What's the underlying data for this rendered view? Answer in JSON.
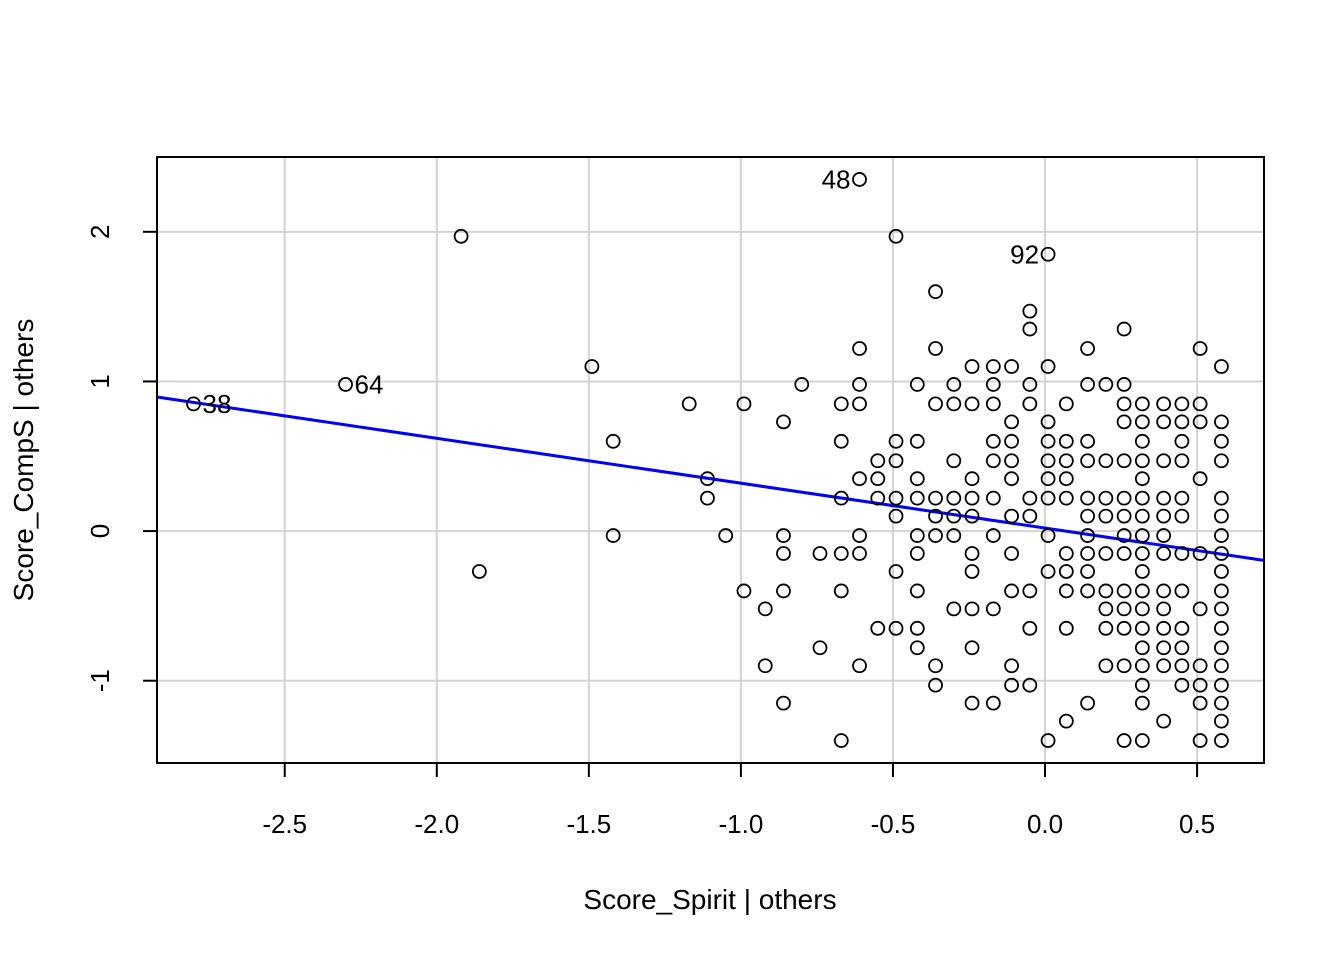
{
  "chart_data": {
    "type": "scatter",
    "xlabel": "Score_Spirit | others",
    "ylabel": "Score_CompS  | others",
    "xlim": [
      -2.92,
      0.72
    ],
    "ylim": [
      -1.55,
      2.5
    ],
    "xticks": [
      -2.5,
      -2.0,
      -1.5,
      -1.0,
      -0.5,
      0.0,
      0.5
    ],
    "xtick_labels": [
      "-2.5",
      "-2.0",
      "-1.5",
      "-1.0",
      "-0.5",
      "0.0",
      "0.5"
    ],
    "yticks": [
      -1,
      0,
      1,
      2
    ],
    "ytick_labels": [
      "-1",
      "0",
      "1",
      "2"
    ],
    "grid": true,
    "regression_line": {
      "intercept": 0.02,
      "slope": -0.3,
      "color": "#0000FF"
    },
    "labeled_points": [
      {
        "label": "38",
        "x": -2.8,
        "y": 0.85
      },
      {
        "label": "64",
        "x": -2.3,
        "y": 0.98
      },
      {
        "label": "48",
        "x": -0.61,
        "y": 2.35
      },
      {
        "label": "92",
        "x": 0.01,
        "y": 1.85
      }
    ],
    "points": [
      [
        -2.8,
        0.85
      ],
      [
        -2.3,
        0.98
      ],
      [
        -1.92,
        1.97
      ],
      [
        -1.86,
        -0.27
      ],
      [
        -1.49,
        1.1
      ],
      [
        -1.42,
        0.6
      ],
      [
        -1.42,
        -0.03
      ],
      [
        -1.17,
        0.85
      ],
      [
        -1.11,
        0.35
      ],
      [
        -1.11,
        0.22
      ],
      [
        -1.05,
        -0.03
      ],
      [
        -0.99,
        0.85
      ],
      [
        -0.99,
        -0.4
      ],
      [
        -0.92,
        -0.52
      ],
      [
        -0.92,
        -0.9
      ],
      [
        -0.86,
        0.73
      ],
      [
        -0.86,
        -0.03
      ],
      [
        -0.86,
        -0.15
      ],
      [
        -0.86,
        -0.4
      ],
      [
        -0.86,
        -1.15
      ],
      [
        -0.8,
        0.98
      ],
      [
        -0.74,
        -0.15
      ],
      [
        -0.74,
        -0.78
      ],
      [
        -0.67,
        0.85
      ],
      [
        -0.67,
        0.6
      ],
      [
        -0.67,
        0.22
      ],
      [
        -0.67,
        -0.15
      ],
      [
        -0.67,
        -0.4
      ],
      [
        -0.67,
        -1.4
      ],
      [
        -0.61,
        2.35
      ],
      [
        -0.61,
        1.22
      ],
      [
        -0.61,
        0.98
      ],
      [
        -0.61,
        0.85
      ],
      [
        -0.61,
        0.35
      ],
      [
        -0.61,
        -0.03
      ],
      [
        -0.61,
        -0.15
      ],
      [
        -0.61,
        -0.9
      ],
      [
        -0.55,
        0.47
      ],
      [
        -0.55,
        0.35
      ],
      [
        -0.55,
        0.22
      ],
      [
        -0.55,
        -0.65
      ],
      [
        -0.49,
        1.97
      ],
      [
        -0.49,
        0.6
      ],
      [
        -0.49,
        0.47
      ],
      [
        -0.49,
        0.22
      ],
      [
        -0.49,
        0.1
      ],
      [
        -0.49,
        -0.27
      ],
      [
        -0.49,
        -0.65
      ],
      [
        -0.42,
        0.98
      ],
      [
        -0.42,
        0.6
      ],
      [
        -0.42,
        0.35
      ],
      [
        -0.42,
        0.22
      ],
      [
        -0.42,
        -0.03
      ],
      [
        -0.42,
        -0.15
      ],
      [
        -0.42,
        -0.4
      ],
      [
        -0.42,
        -0.65
      ],
      [
        -0.42,
        -0.78
      ],
      [
        -0.36,
        1.6
      ],
      [
        -0.36,
        1.22
      ],
      [
        -0.36,
        0.85
      ],
      [
        -0.36,
        0.22
      ],
      [
        -0.36,
        0.1
      ],
      [
        -0.36,
        -0.03
      ],
      [
        -0.36,
        -0.9
      ],
      [
        -0.36,
        -1.03
      ],
      [
        -0.3,
        0.98
      ],
      [
        -0.3,
        0.85
      ],
      [
        -0.3,
        0.47
      ],
      [
        -0.3,
        0.22
      ],
      [
        -0.3,
        0.1
      ],
      [
        -0.3,
        -0.03
      ],
      [
        -0.3,
        -0.52
      ],
      [
        -0.24,
        1.1
      ],
      [
        -0.24,
        0.85
      ],
      [
        -0.24,
        0.35
      ],
      [
        -0.24,
        0.22
      ],
      [
        -0.24,
        0.1
      ],
      [
        -0.24,
        -0.15
      ],
      [
        -0.24,
        -0.27
      ],
      [
        -0.24,
        -0.52
      ],
      [
        -0.24,
        -0.78
      ],
      [
        -0.24,
        -1.15
      ],
      [
        -0.17,
        1.1
      ],
      [
        -0.17,
        0.98
      ],
      [
        -0.17,
        0.85
      ],
      [
        -0.17,
        0.6
      ],
      [
        -0.17,
        0.47
      ],
      [
        -0.17,
        0.22
      ],
      [
        -0.17,
        -0.03
      ],
      [
        -0.17,
        -0.52
      ],
      [
        -0.17,
        -1.15
      ],
      [
        -0.11,
        1.1
      ],
      [
        -0.11,
        0.73
      ],
      [
        -0.11,
        0.6
      ],
      [
        -0.11,
        0.47
      ],
      [
        -0.11,
        0.35
      ],
      [
        -0.11,
        0.1
      ],
      [
        -0.11,
        -0.15
      ],
      [
        -0.11,
        -0.4
      ],
      [
        -0.11,
        -0.9
      ],
      [
        -0.11,
        -1.03
      ],
      [
        -0.05,
        1.47
      ],
      [
        -0.05,
        1.35
      ],
      [
        -0.05,
        0.98
      ],
      [
        -0.05,
        0.85
      ],
      [
        -0.05,
        0.22
      ],
      [
        -0.05,
        0.1
      ],
      [
        -0.05,
        -0.4
      ],
      [
        -0.05,
        -0.65
      ],
      [
        -0.05,
        -1.03
      ],
      [
        0.01,
        1.85
      ],
      [
        0.01,
        1.1
      ],
      [
        0.01,
        0.73
      ],
      [
        0.01,
        0.6
      ],
      [
        0.01,
        0.47
      ],
      [
        0.01,
        0.35
      ],
      [
        0.01,
        0.22
      ],
      [
        0.01,
        -0.03
      ],
      [
        0.01,
        -0.27
      ],
      [
        0.01,
        -1.4
      ],
      [
        0.07,
        0.85
      ],
      [
        0.07,
        0.6
      ],
      [
        0.07,
        0.47
      ],
      [
        0.07,
        0.35
      ],
      [
        0.07,
        0.22
      ],
      [
        0.07,
        -0.15
      ],
      [
        0.07,
        -0.27
      ],
      [
        0.07,
        -0.4
      ],
      [
        0.07,
        -0.65
      ],
      [
        0.07,
        -1.27
      ],
      [
        0.14,
        1.22
      ],
      [
        0.14,
        0.98
      ],
      [
        0.14,
        0.6
      ],
      [
        0.14,
        0.47
      ],
      [
        0.14,
        0.22
      ],
      [
        0.14,
        0.1
      ],
      [
        0.14,
        -0.03
      ],
      [
        0.14,
        -0.15
      ],
      [
        0.14,
        -0.27
      ],
      [
        0.14,
        -0.4
      ],
      [
        0.14,
        -1.15
      ],
      [
        0.2,
        0.98
      ],
      [
        0.2,
        0.47
      ],
      [
        0.2,
        0.22
      ],
      [
        0.2,
        0.1
      ],
      [
        0.2,
        -0.15
      ],
      [
        0.2,
        -0.4
      ],
      [
        0.2,
        -0.52
      ],
      [
        0.2,
        -0.65
      ],
      [
        0.2,
        -0.9
      ],
      [
        0.26,
        1.35
      ],
      [
        0.26,
        0.98
      ],
      [
        0.26,
        0.85
      ],
      [
        0.26,
        0.73
      ],
      [
        0.26,
        0.47
      ],
      [
        0.26,
        0.22
      ],
      [
        0.26,
        0.1
      ],
      [
        0.26,
        -0.03
      ],
      [
        0.26,
        -0.15
      ],
      [
        0.26,
        -0.4
      ],
      [
        0.26,
        -0.52
      ],
      [
        0.26,
        -0.65
      ],
      [
        0.26,
        -0.9
      ],
      [
        0.26,
        -1.4
      ],
      [
        0.32,
        0.85
      ],
      [
        0.32,
        0.73
      ],
      [
        0.32,
        0.6
      ],
      [
        0.32,
        0.47
      ],
      [
        0.32,
        0.35
      ],
      [
        0.32,
        0.22
      ],
      [
        0.32,
        0.1
      ],
      [
        0.32,
        -0.03
      ],
      [
        0.32,
        -0.15
      ],
      [
        0.32,
        -0.27
      ],
      [
        0.32,
        -0.4
      ],
      [
        0.32,
        -0.52
      ],
      [
        0.32,
        -0.65
      ],
      [
        0.32,
        -0.78
      ],
      [
        0.32,
        -0.9
      ],
      [
        0.32,
        -1.03
      ],
      [
        0.32,
        -1.15
      ],
      [
        0.32,
        -1.4
      ],
      [
        0.39,
        0.85
      ],
      [
        0.39,
        0.73
      ],
      [
        0.39,
        0.47
      ],
      [
        0.39,
        0.22
      ],
      [
        0.39,
        0.1
      ],
      [
        0.39,
        -0.03
      ],
      [
        0.39,
        -0.15
      ],
      [
        0.39,
        -0.4
      ],
      [
        0.39,
        -0.52
      ],
      [
        0.39,
        -0.65
      ],
      [
        0.39,
        -0.78
      ],
      [
        0.39,
        -0.9
      ],
      [
        0.39,
        -1.27
      ],
      [
        0.45,
        0.85
      ],
      [
        0.45,
        0.73
      ],
      [
        0.45,
        0.6
      ],
      [
        0.45,
        0.47
      ],
      [
        0.45,
        0.22
      ],
      [
        0.45,
        0.1
      ],
      [
        0.45,
        -0.15
      ],
      [
        0.45,
        -0.4
      ],
      [
        0.45,
        -0.65
      ],
      [
        0.45,
        -0.78
      ],
      [
        0.45,
        -0.9
      ],
      [
        0.45,
        -1.03
      ],
      [
        0.51,
        1.22
      ],
      [
        0.51,
        0.85
      ],
      [
        0.51,
        0.73
      ],
      [
        0.51,
        0.35
      ],
      [
        0.51,
        -0.15
      ],
      [
        0.51,
        -0.52
      ],
      [
        0.51,
        -0.9
      ],
      [
        0.51,
        -1.03
      ],
      [
        0.51,
        -1.15
      ],
      [
        0.51,
        -1.4
      ],
      [
        0.58,
        1.1
      ],
      [
        0.58,
        0.73
      ],
      [
        0.58,
        0.6
      ],
      [
        0.58,
        0.47
      ],
      [
        0.58,
        0.22
      ],
      [
        0.58,
        0.1
      ],
      [
        0.58,
        -0.03
      ],
      [
        0.58,
        -0.15
      ],
      [
        0.58,
        -0.27
      ],
      [
        0.58,
        -0.4
      ],
      [
        0.58,
        -0.52
      ],
      [
        0.58,
        -0.65
      ],
      [
        0.58,
        -0.78
      ],
      [
        0.58,
        -0.9
      ],
      [
        0.58,
        -1.03
      ],
      [
        0.58,
        -1.15
      ],
      [
        0.58,
        -1.27
      ],
      [
        0.58,
        -1.4
      ]
    ]
  }
}
